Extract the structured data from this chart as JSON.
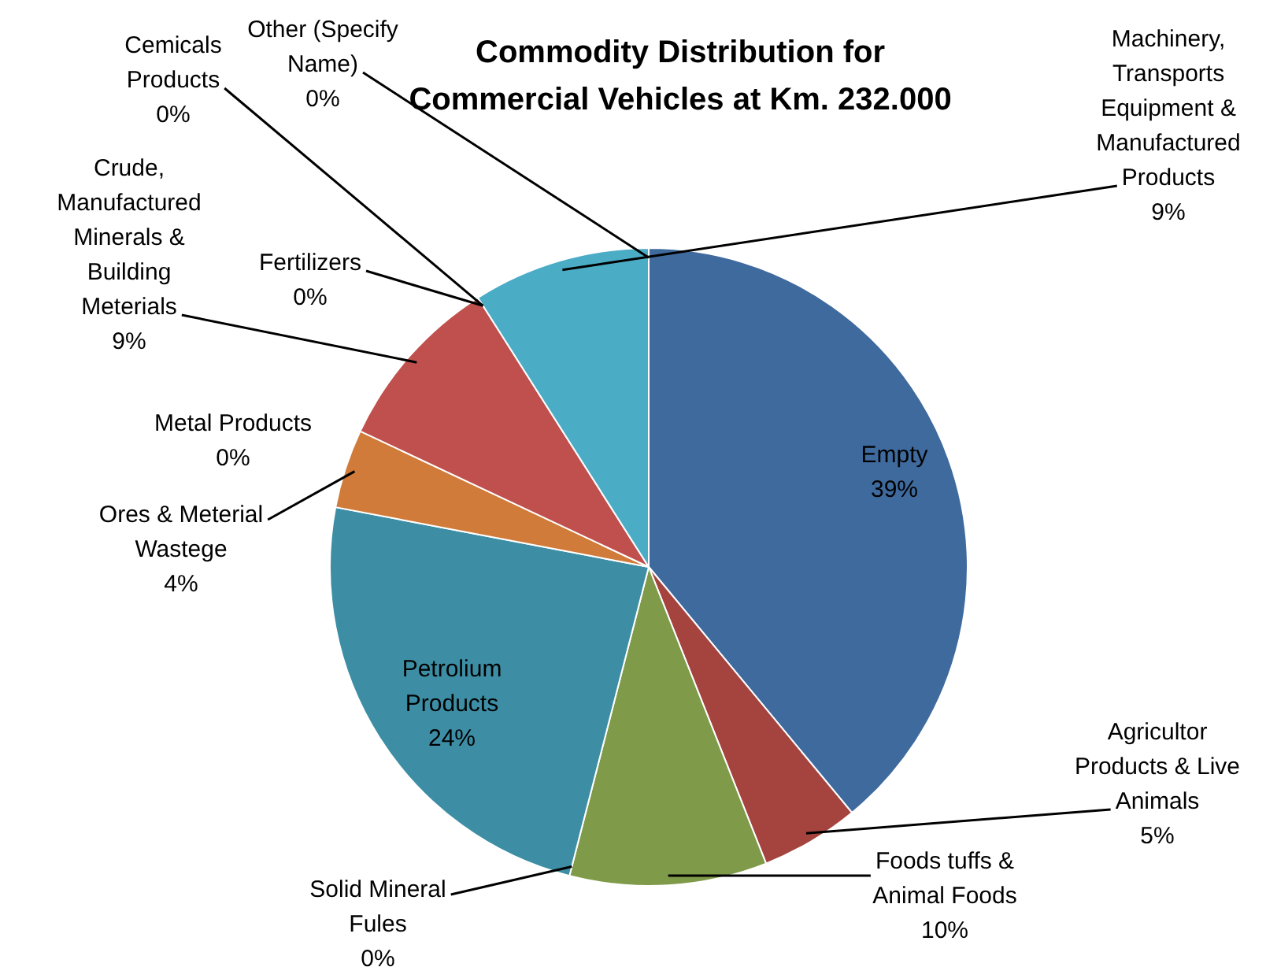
{
  "chart_data": {
    "type": "pie",
    "title": "Commodity Distribution for Commercial Vehicles at Km. 232.000",
    "categories": [
      "Empty",
      "Agricultor Products & Live Animals",
      "Foods tuffs & Animal Foods",
      "Solid Mineral Fules",
      "Petrolium Products",
      "Ores & Meterial Wastege",
      "Metal Products",
      "Crude, Manufactured Minerals & Building Meterials",
      "Fertilizers",
      "Cemicals Products",
      "Machinery, Transports Equipment & Manufactured Products",
      "Other (Specify Name)"
    ],
    "values": [
      39,
      5,
      10,
      0,
      24,
      4,
      0,
      9,
      0,
      0,
      9,
      0
    ],
    "value_labels": [
      "39%",
      "5%",
      "10%",
      "0%",
      "24%",
      "4%",
      "0%",
      "9%",
      "0%",
      "0%",
      "9%",
      "0%"
    ],
    "colors": [
      "#3f6a9e",
      "#a5443f",
      "#7f9a48",
      "#6f5a8f",
      "#3d8ea5",
      "#d07b3a",
      "#8aa3cc",
      "#c0504d",
      "#9bbb59",
      "#7c5e9e",
      "#4bacc6",
      "#f79646"
    ],
    "legend": false
  }
}
